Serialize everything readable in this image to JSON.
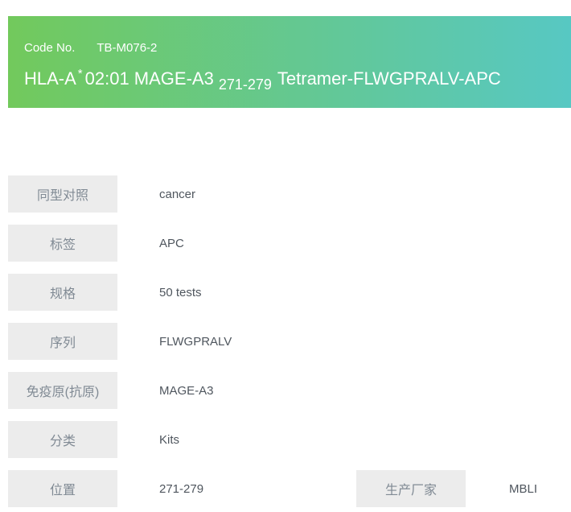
{
  "colors": {
    "banner_gradient_start": "#72c95c",
    "banner_gradient_end": "#57c8c3",
    "banner_text": "#ffffff",
    "label_box_bg": "#ececec",
    "label_text": "#808a94",
    "value_text": "#4f565e"
  },
  "header": {
    "code_label": "Code No.",
    "code_value": "TB-M076-2",
    "title": {
      "part1": "HLA-A",
      "sup": "*",
      "part2": "02:01 MAGE-A3",
      "sub": "271-279",
      "part3": "Tetramer-FLWGPRALV-APC"
    }
  },
  "rows": [
    {
      "label": "同型对照",
      "value": "cancer"
    },
    {
      "label": "标签",
      "value": "APC"
    },
    {
      "label": "规格",
      "value": "50 tests"
    },
    {
      "label": "序列",
      "value": "FLWGPRALV"
    },
    {
      "label": "免疫原(抗原)",
      "value": "MAGE-A3"
    },
    {
      "label": "分类",
      "value": "Kits"
    },
    {
      "label": "位置",
      "value": "271-279"
    }
  ],
  "manufacturer": {
    "label": "生产厂家",
    "value": "MBLI"
  }
}
